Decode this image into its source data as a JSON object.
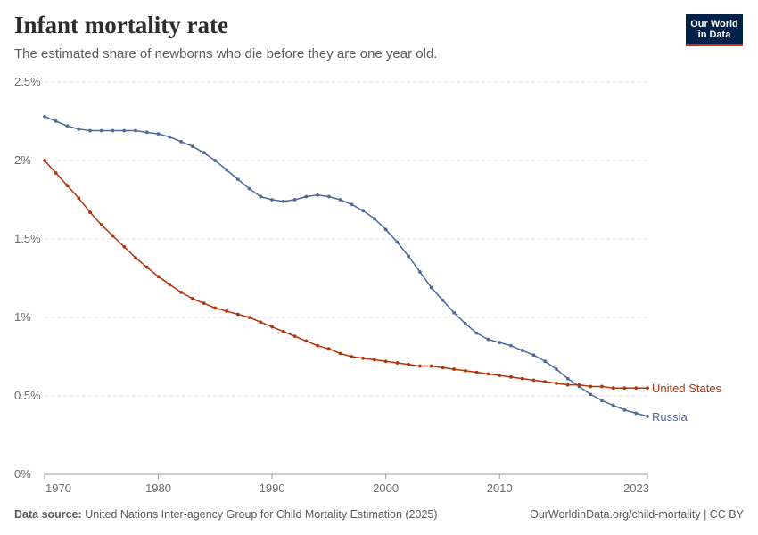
{
  "header": {
    "title": "Infant mortality rate",
    "subtitle": "The estimated share of newborns who die before they are one year old.",
    "logo_line1": "Our World",
    "logo_line2": "in Data"
  },
  "footer": {
    "source_label": "Data source:",
    "source_text": "United Nations Inter-agency Group for Child Mortality Estimation (2025)",
    "right_text": "OurWorldinData.org/child-mortality | CC BY"
  },
  "colors": {
    "russia": "#4c6a9c",
    "united_states": "#b13507",
    "grid": "#dddddd",
    "axis_text": "#6b6b6b"
  },
  "chart_data": {
    "type": "line",
    "title": "Infant mortality rate",
    "xlabel": "",
    "ylabel": "",
    "xlim": [
      1970,
      2023
    ],
    "ylim": [
      0,
      2.5
    ],
    "x_ticks": [
      1970,
      1980,
      1990,
      2000,
      2010,
      2023
    ],
    "y_ticks": [
      0,
      0.5,
      1,
      1.5,
      2,
      2.5
    ],
    "y_tick_labels": [
      "0%",
      "0.5%",
      "1%",
      "1.5%",
      "2%",
      "2.5%"
    ],
    "grid": "horizontal dashed",
    "legend": "labels at line ends",
    "x": [
      1970,
      1971,
      1972,
      1973,
      1974,
      1975,
      1976,
      1977,
      1978,
      1979,
      1980,
      1981,
      1982,
      1983,
      1984,
      1985,
      1986,
      1987,
      1988,
      1989,
      1990,
      1991,
      1992,
      1993,
      1994,
      1995,
      1996,
      1997,
      1998,
      1999,
      2000,
      2001,
      2002,
      2003,
      2004,
      2005,
      2006,
      2007,
      2008,
      2009,
      2010,
      2011,
      2012,
      2013,
      2014,
      2015,
      2016,
      2017,
      2018,
      2019,
      2020,
      2021,
      2022,
      2023
    ],
    "series": [
      {
        "name": "Russia",
        "color": "#4c6a9c",
        "values": [
          2.28,
          2.25,
          2.22,
          2.2,
          2.19,
          2.19,
          2.19,
          2.19,
          2.19,
          2.18,
          2.17,
          2.15,
          2.12,
          2.09,
          2.05,
          2.0,
          1.94,
          1.88,
          1.82,
          1.77,
          1.75,
          1.74,
          1.75,
          1.77,
          1.78,
          1.77,
          1.75,
          1.72,
          1.68,
          1.63,
          1.56,
          1.48,
          1.39,
          1.29,
          1.19,
          1.11,
          1.03,
          0.96,
          0.9,
          0.86,
          0.84,
          0.82,
          0.79,
          0.76,
          0.72,
          0.67,
          0.61,
          0.56,
          0.51,
          0.47,
          0.44,
          0.41,
          0.39,
          0.37
        ]
      },
      {
        "name": "United States",
        "color": "#b13507",
        "values": [
          2.0,
          1.92,
          1.84,
          1.76,
          1.67,
          1.59,
          1.52,
          1.45,
          1.38,
          1.32,
          1.26,
          1.21,
          1.16,
          1.12,
          1.09,
          1.06,
          1.04,
          1.02,
          1.0,
          0.97,
          0.94,
          0.91,
          0.88,
          0.85,
          0.82,
          0.8,
          0.77,
          0.75,
          0.74,
          0.73,
          0.72,
          0.71,
          0.7,
          0.69,
          0.69,
          0.68,
          0.67,
          0.66,
          0.65,
          0.64,
          0.63,
          0.62,
          0.61,
          0.6,
          0.59,
          0.58,
          0.57,
          0.57,
          0.56,
          0.56,
          0.55,
          0.55,
          0.55,
          0.55
        ]
      }
    ]
  }
}
